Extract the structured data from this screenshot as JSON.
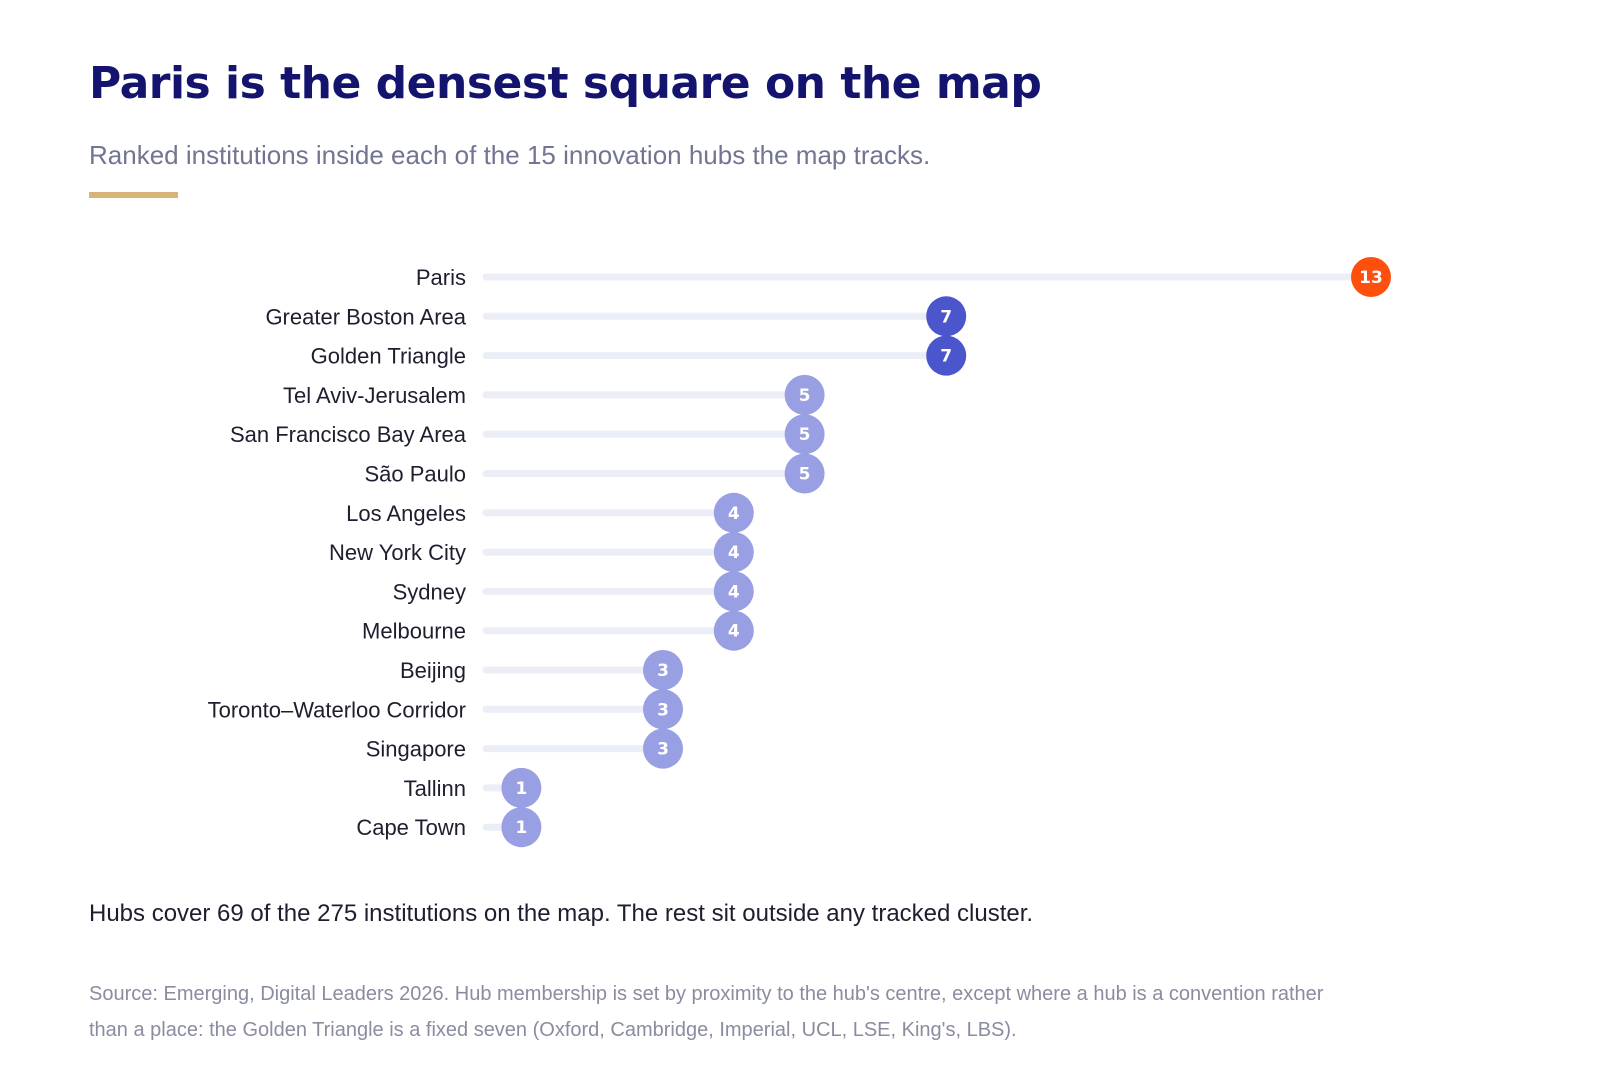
{
  "title": "Paris is the densest square on the map",
  "subtitle": "Ranked institutions inside each of the 15 innovation hubs the map tracks.",
  "note": "Hubs cover 69 of the 275 institutions on the map. The rest sit outside any tracked cluster.",
  "source": "Source: Emerging, Digital Leaders 2026. Hub membership is set by proximity to the hub's centre, except where a hub is a convention rather than a place: the Golden Triangle is a fixed seven (Oxford, Cambridge, Imperial, UCL, LSE, King's, LBS).",
  "colors": {
    "accent_rule": "#d6b577",
    "track": "#eceef7",
    "top": "#ff4f0f",
    "second": "#4b55cc",
    "rest": "#989fe3"
  },
  "chart_data": {
    "type": "lollipop",
    "orientation": "horizontal",
    "categories": [
      "Paris",
      "Greater Boston Area",
      "Golden Triangle",
      "Tel Aviv-Jerusalem",
      "San Francisco Bay Area",
      "São Paulo",
      "Los Angeles",
      "New York City",
      "Sydney",
      "Melbourne",
      "Beijing",
      "Toronto–Waterloo Corridor",
      "Singapore",
      "Tallinn",
      "Cape Town"
    ],
    "values": [
      13,
      7,
      7,
      5,
      5,
      5,
      4,
      4,
      4,
      4,
      3,
      3,
      3,
      1,
      1
    ],
    "xlim": [
      0,
      13
    ],
    "grid": false,
    "data_labels": true,
    "color_groups": [
      "top",
      "second",
      "second",
      "rest",
      "rest",
      "rest",
      "rest",
      "rest",
      "rest",
      "rest",
      "rest",
      "rest",
      "rest",
      "rest",
      "rest"
    ]
  }
}
